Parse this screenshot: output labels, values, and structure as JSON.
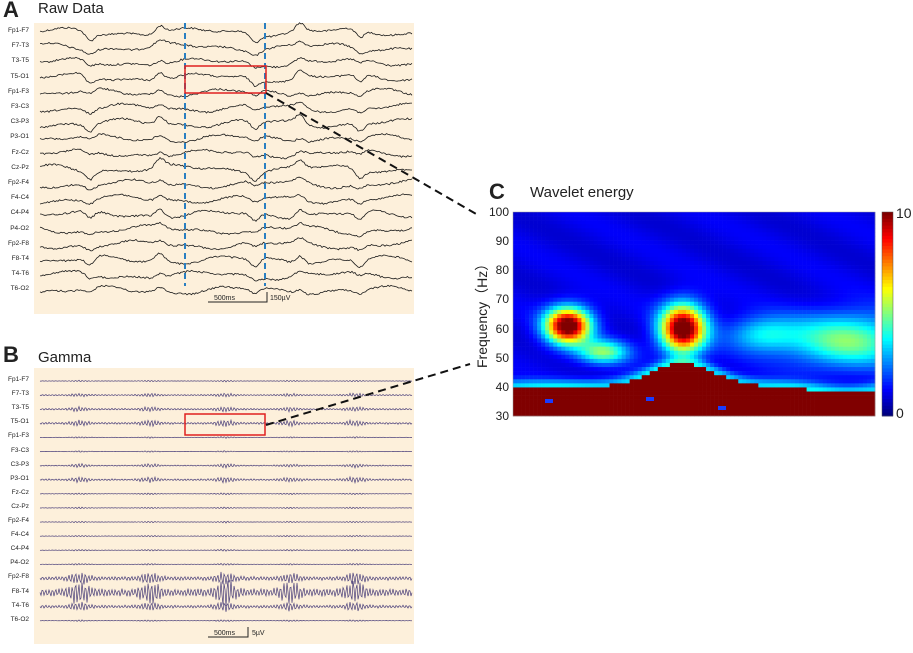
{
  "panelA": {
    "letter": "A",
    "title": "Raw Data",
    "channels": [
      "Fp1-F7",
      "F7-T3",
      "T3-T5",
      "T5-O1",
      "Fp1-F3",
      "F3-C3",
      "C3-P3",
      "P3-O1",
      "Fz-Cz",
      "Cz-Pz",
      "Fp2-F4",
      "F4-C4",
      "C4-P4",
      "P4-O2",
      "Fp2-F8",
      "F8-T4",
      "T4-T6",
      "T6-O2"
    ],
    "scale_time": "500ms",
    "scale_amp": "150µV"
  },
  "panelB": {
    "letter": "B",
    "title": "Gamma",
    "channels": [
      "Fp1-F7",
      "F7-T3",
      "T3-T5",
      "T5-O1",
      "Fp1-F3",
      "F3-C3",
      "C3-P3",
      "P3-O1",
      "Fz-Cz",
      "Cz-Pz",
      "Fp2-F4",
      "F4-C4",
      "C4-P4",
      "P4-O2",
      "Fp2-F8",
      "F8-T4",
      "T4-T6",
      "T6-O2"
    ],
    "scale_time": "500ms",
    "scale_amp": "5µV"
  },
  "panelC": {
    "letter": "C",
    "title": "Wavelet energy",
    "ylabel": "Frequency（Hz）",
    "yticks": [
      "100",
      "90",
      "80",
      "70",
      "60",
      "50",
      "40",
      "30"
    ],
    "colorbar_max": "10",
    "colorbar_min": "0"
  },
  "colors": {
    "eeg_background": "#fdf0db",
    "raw_trace": "#1a1a1a",
    "gamma_trace": "#4a3f7a",
    "marker_line": "#2a7fc1",
    "highlight_box": "#e02020",
    "heatmap_low": "#00008f",
    "heatmap_high": "#8b0000"
  }
}
